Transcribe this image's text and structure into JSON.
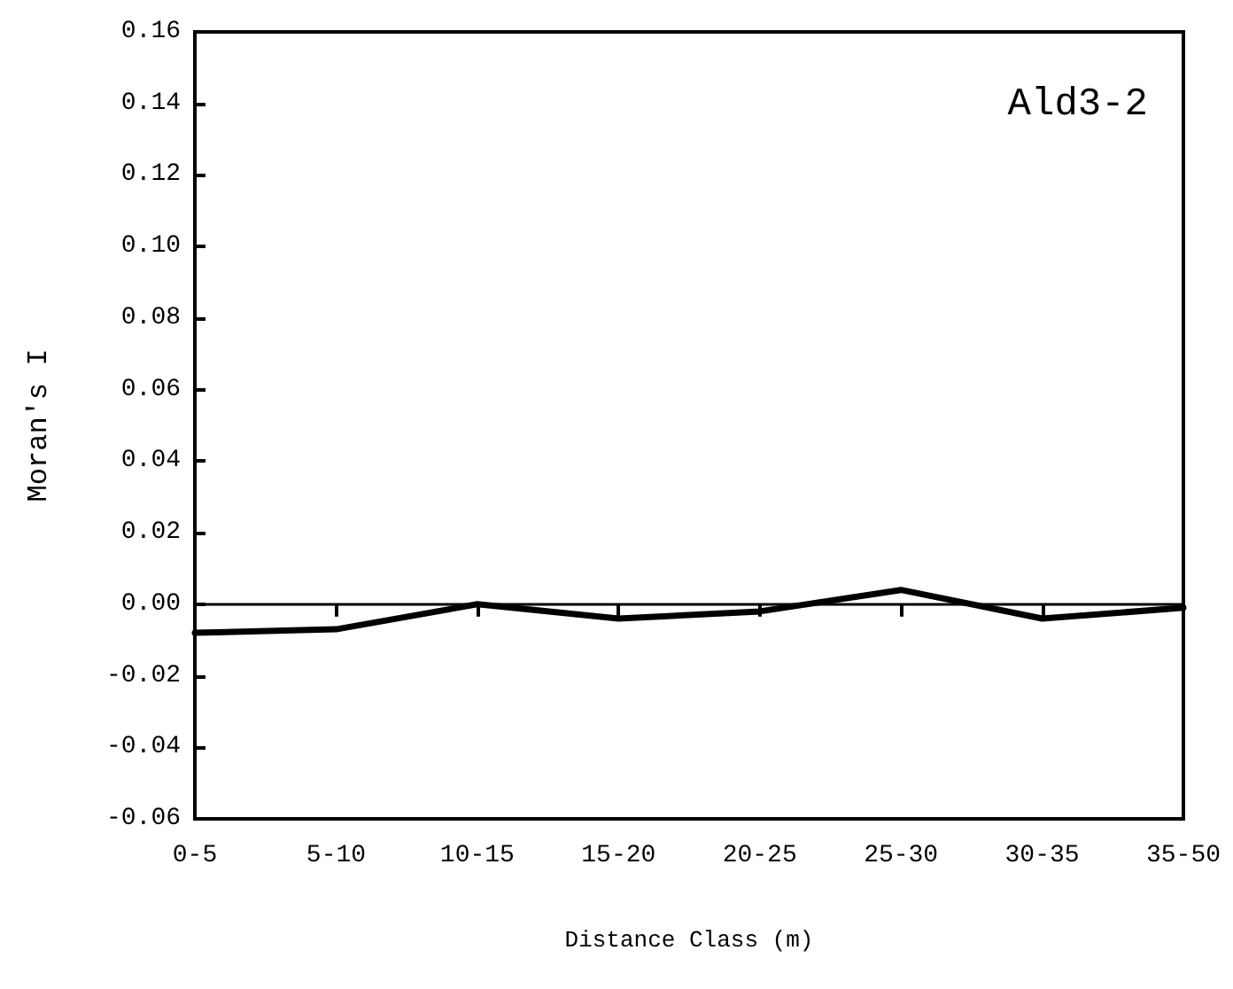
{
  "chart_data": {
    "type": "line",
    "xlabel": "Distance Class (m)",
    "ylabel": "Moran's I",
    "categories": [
      "0-5",
      "5-10",
      "10-15",
      "15-20",
      "20-25",
      "25-30",
      "30-35",
      "35-50"
    ],
    "series": [
      {
        "color": "#000000",
        "values": [
          -0.008,
          -0.007,
          0.0,
          -0.004,
          -0.002,
          0.004,
          -0.004,
          -0.001
        ]
      }
    ],
    "ylim": [
      -0.06,
      0.16
    ],
    "yticks": [
      {
        "value": -0.06,
        "label": "-0.06"
      },
      {
        "value": -0.04,
        "label": "-0.04"
      },
      {
        "value": -0.02,
        "label": "-0.02"
      },
      {
        "value": 0,
        "label": "0.00"
      },
      {
        "value": 0.02,
        "label": "0.02"
      },
      {
        "value": 0.04,
        "label": "0.04"
      },
      {
        "value": 0.06,
        "label": "0.06"
      },
      {
        "value": 0.08,
        "label": "0.08"
      },
      {
        "value": 0.1,
        "label": "0.10"
      },
      {
        "value": 0.12,
        "label": "0.12"
      },
      {
        "value": 0.14,
        "label": "0.14"
      },
      {
        "value": 0.16,
        "label": "0.16"
      }
    ],
    "ref_lines": [
      {
        "axis": "y",
        "value": 0,
        "color": "#000000"
      }
    ],
    "annotations": [
      "Ald3-2"
    ],
    "grid": false,
    "marker": "none",
    "line_style": "solid"
  }
}
